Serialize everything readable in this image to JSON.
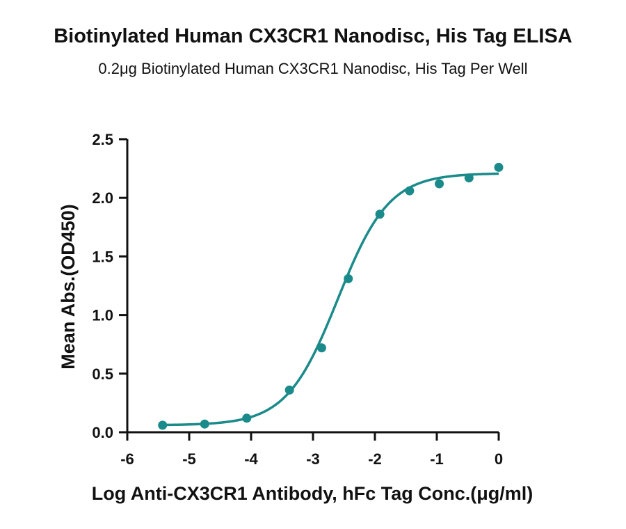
{
  "chart_data": {
    "type": "scatter",
    "title": "Biotinylated Human CX3CR1 Nanodisc, His Tag ELISA",
    "subtitle": "0.2μg Biotinylated Human CX3CR1 Nanodisc, His Tag Per Well",
    "xlabel": "Log Anti-CX3CR1 Antibody, hFc Tag Conc.(μg/ml)",
    "ylabel": "Mean Abs.(OD450)",
    "xlim": [
      -6,
      0
    ],
    "ylim": [
      0,
      2.5
    ],
    "x_ticks": [
      "-6",
      "-5",
      "-4",
      "-3",
      "-2",
      "-1",
      "0"
    ],
    "y_ticks": [
      "0.0",
      "0.5",
      "1.0",
      "1.5",
      "2.0",
      "2.5"
    ],
    "grid": false,
    "color": "#1a8a8a",
    "series": [
      {
        "x": [
          -5.43,
          -4.75,
          -4.07,
          -3.38,
          -2.86,
          -2.43,
          -1.92,
          -1.44,
          -0.96,
          -0.48,
          0.0
        ],
        "y": [
          0.06,
          0.07,
          0.12,
          0.36,
          0.72,
          1.31,
          1.86,
          2.06,
          2.12,
          2.17,
          2.26
        ]
      }
    ],
    "fit_curve": {
      "bottom": 0.06,
      "top": 2.21,
      "log_ec50": -2.6,
      "hill_slope": 1.05
    }
  }
}
